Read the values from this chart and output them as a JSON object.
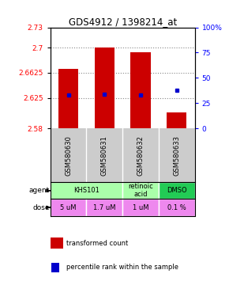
{
  "title": "GDS4912 / 1398214_at",
  "samples": [
    "GSM580630",
    "GSM580631",
    "GSM580632",
    "GSM580633"
  ],
  "bar_values": [
    2.668,
    2.7,
    2.693,
    2.604
  ],
  "bar_bottom": 2.58,
  "percentile_values": [
    2.629,
    2.631,
    2.63,
    2.636
  ],
  "ymin": 2.58,
  "ymax": 2.73,
  "yticks_left": [
    2.58,
    2.625,
    2.6625,
    2.7,
    2.73
  ],
  "ytick_labels_left": [
    "2.58",
    "2.625",
    "2.6625",
    "2.7",
    "2.73"
  ],
  "yticks_right": [
    0,
    25,
    50,
    75,
    100
  ],
  "ytick_labels_right": [
    "0",
    "25",
    "50",
    "75",
    "100%"
  ],
  "bar_color": "#cc0000",
  "percentile_color": "#0000cc",
  "dose_labels": [
    "5 uM",
    "1.7 uM",
    "1 uM",
    "0.1 %"
  ],
  "dose_color": "#ee88ee",
  "sample_box_color": "#cccccc",
  "grid_color": "#888888",
  "agent_defs": [
    {
      "cols": [
        0,
        1
      ],
      "label": "KHS101",
      "color": "#aaffaa"
    },
    {
      "cols": [
        2
      ],
      "label": "retinoic\nacid",
      "color": "#aaffaa"
    },
    {
      "cols": [
        3
      ],
      "label": "DMSO",
      "color": "#22cc55"
    }
  ],
  "legend_bar_label": "transformed count",
  "legend_dot_label": "percentile rank within the sample"
}
